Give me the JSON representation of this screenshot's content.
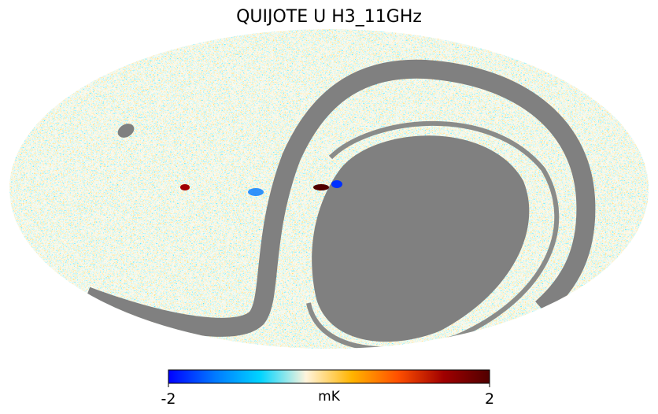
{
  "title": "QUIJOTE U H3_11GHz",
  "colorbar": {
    "label": "mK",
    "lim": [
      -2,
      2
    ],
    "ticks": [
      -2,
      2
    ],
    "colors": [
      "#0000ff",
      "#0078ff",
      "#00d4ff",
      "#fff4dc",
      "#ffb400",
      "#ff5000",
      "#a00000",
      "#500000"
    ]
  },
  "mask_color": "#808080"
}
